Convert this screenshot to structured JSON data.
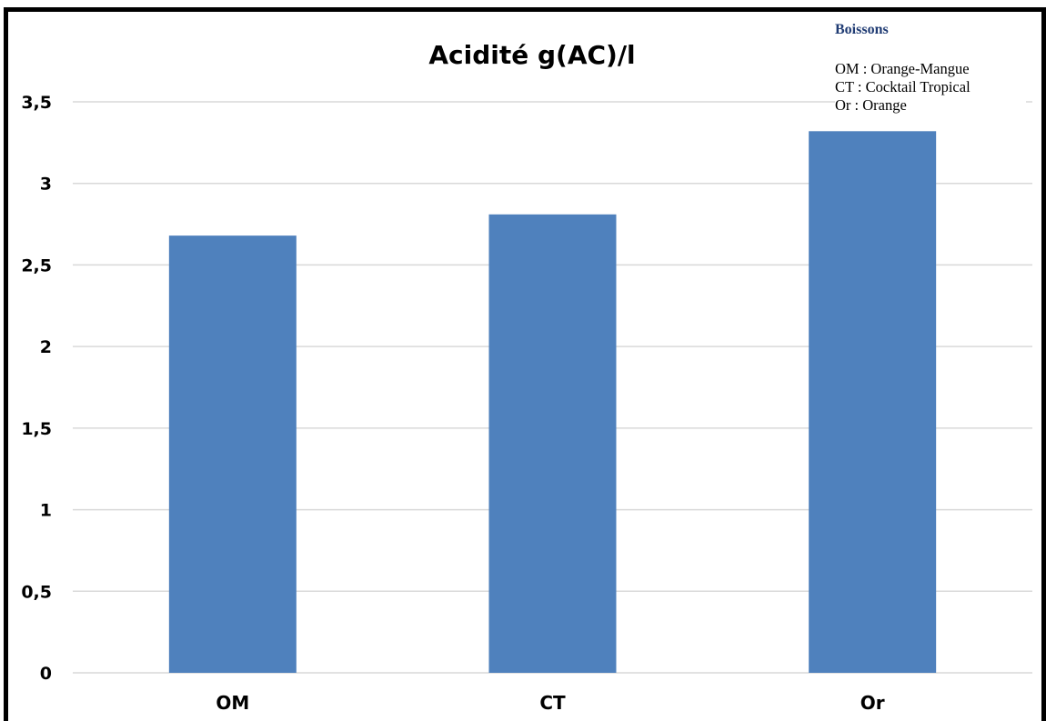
{
  "colors": {
    "bar": "#4f81bd",
    "grid": "#d9d9d9",
    "frame": "#000000",
    "legend_title": "#1f3b73"
  },
  "legend": {
    "title": "Boissons",
    "items": [
      "OM : Orange-Mangue",
      "CT : Cocktail Tropical",
      "Or : Orange"
    ]
  },
  "chart_data": {
    "type": "bar",
    "title": "Acidité g(AC)/l",
    "xlabel": "",
    "ylabel": "",
    "categories": [
      "OM",
      "CT",
      "Or"
    ],
    "values": [
      2.68,
      2.81,
      3.32
    ],
    "ylim": [
      0,
      3.5
    ],
    "yticks": [
      "0",
      "0,5",
      "1",
      "1,5",
      "2",
      "2,5",
      "3",
      "3,5"
    ],
    "grid": true
  }
}
